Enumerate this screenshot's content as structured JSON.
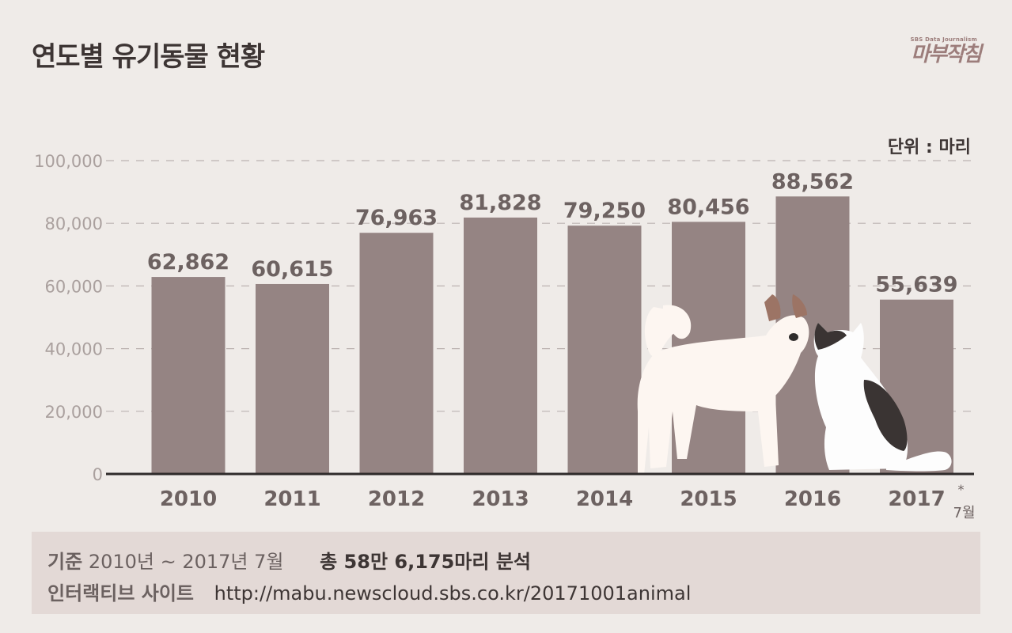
{
  "header": {
    "title": "연도별 유기동물 현황",
    "logo_small": "SBS Data Journalism",
    "logo_big": "마부작침"
  },
  "unit_label": "단위 : 마리",
  "chart_data": {
    "type": "bar",
    "categories": [
      "2010",
      "2011",
      "2012",
      "2013",
      "2014",
      "2015",
      "2016",
      "2017"
    ],
    "values": [
      62862,
      60615,
      76963,
      81828,
      79250,
      80456,
      88562,
      55639
    ],
    "value_labels": [
      "62,862",
      "60,615",
      "76,963",
      "81,828",
      "79,250",
      "80,456",
      "88,562",
      "55,639"
    ],
    "yticks": [
      0,
      20000,
      40000,
      60000,
      80000,
      100000
    ],
    "ytick_labels": [
      "0",
      "20,000",
      "40,000",
      "60,000",
      "80,000",
      "100,000"
    ],
    "ylim": [
      0,
      100000
    ],
    "grid": true,
    "last_category_note": "7월",
    "last_category_marker": "*",
    "colors": {
      "bar": "#958483",
      "axis": "#2e2a2a",
      "grid": "#bcb3b1",
      "tick": "#aaa09e",
      "label": "#6d6261"
    }
  },
  "footer": {
    "basis_label": "기준",
    "basis_value": "2010년 ~ 2017년 7월",
    "total_text": "총 58만 6,175마리 분석",
    "site_label": "인터랙티브 사이트",
    "site_url": "http://mabu.newscloud.sbs.co.kr/20171001animal"
  }
}
